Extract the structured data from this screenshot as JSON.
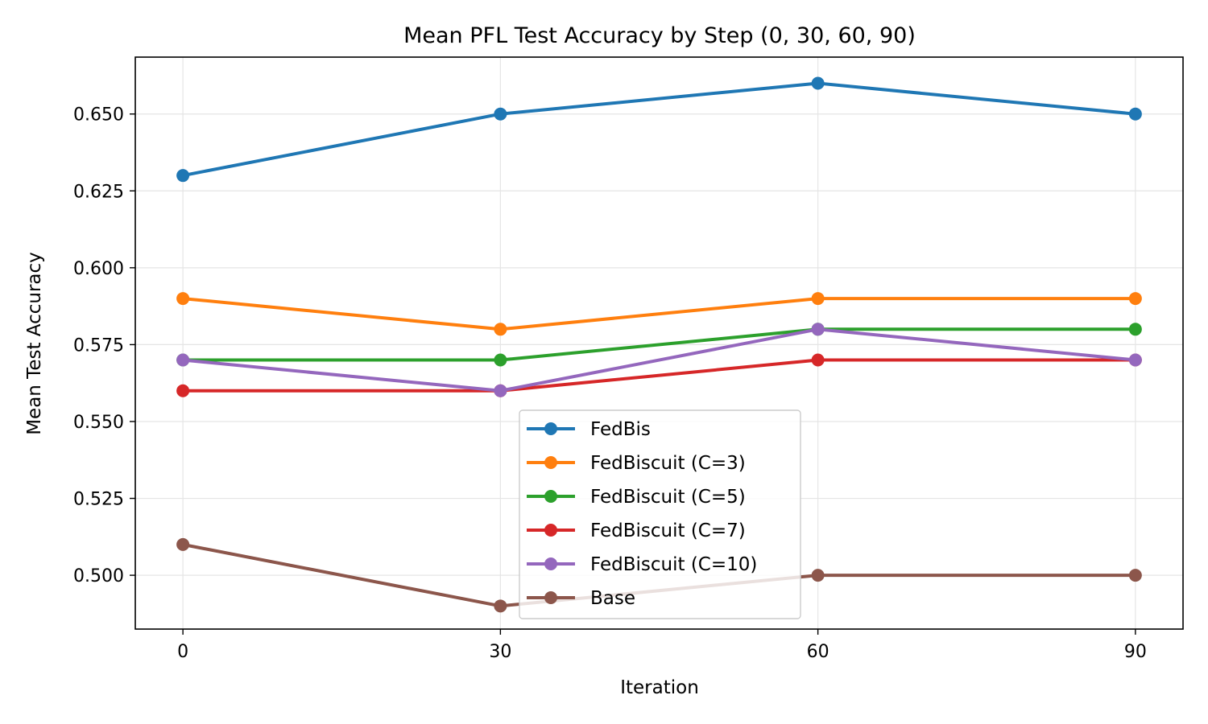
{
  "chart_data": {
    "type": "line",
    "title": "Mean PFL Test Accuracy by Step (0, 30, 60, 90)",
    "xlabel": "Iteration",
    "ylabel": "Mean Test Accuracy",
    "x": [
      0,
      30,
      60,
      90
    ],
    "xlim": [
      -4.5,
      94.5
    ],
    "ylim": [
      0.4825,
      0.6685
    ],
    "yticks": [
      0.5,
      0.525,
      0.55,
      0.575,
      0.6,
      0.625,
      0.65
    ],
    "ytick_labels": [
      "0.500",
      "0.525",
      "0.550",
      "0.575",
      "0.600",
      "0.625",
      "0.650"
    ],
    "xtick_labels": [
      "0",
      "30",
      "60",
      "90"
    ],
    "grid": true,
    "legend_position": "lower-center",
    "series": [
      {
        "name": "FedBis",
        "color": "#1f77b4",
        "values": [
          0.63,
          0.65,
          0.66,
          0.65
        ]
      },
      {
        "name": "FedBiscuit (C=3)",
        "color": "#ff7f0e",
        "values": [
          0.59,
          0.58,
          0.59,
          0.59
        ]
      },
      {
        "name": "FedBiscuit (C=5)",
        "color": "#2ca02c",
        "values": [
          0.57,
          0.57,
          0.58,
          0.58
        ]
      },
      {
        "name": "FedBiscuit (C=7)",
        "color": "#d62728",
        "values": [
          0.56,
          0.56,
          0.57,
          0.57
        ]
      },
      {
        "name": "FedBiscuit (C=10)",
        "color": "#9467bd",
        "values": [
          0.57,
          0.56,
          0.58,
          0.57
        ]
      },
      {
        "name": "Base",
        "color": "#8c564b",
        "values": [
          0.51,
          0.49,
          0.5,
          0.5
        ]
      }
    ]
  }
}
